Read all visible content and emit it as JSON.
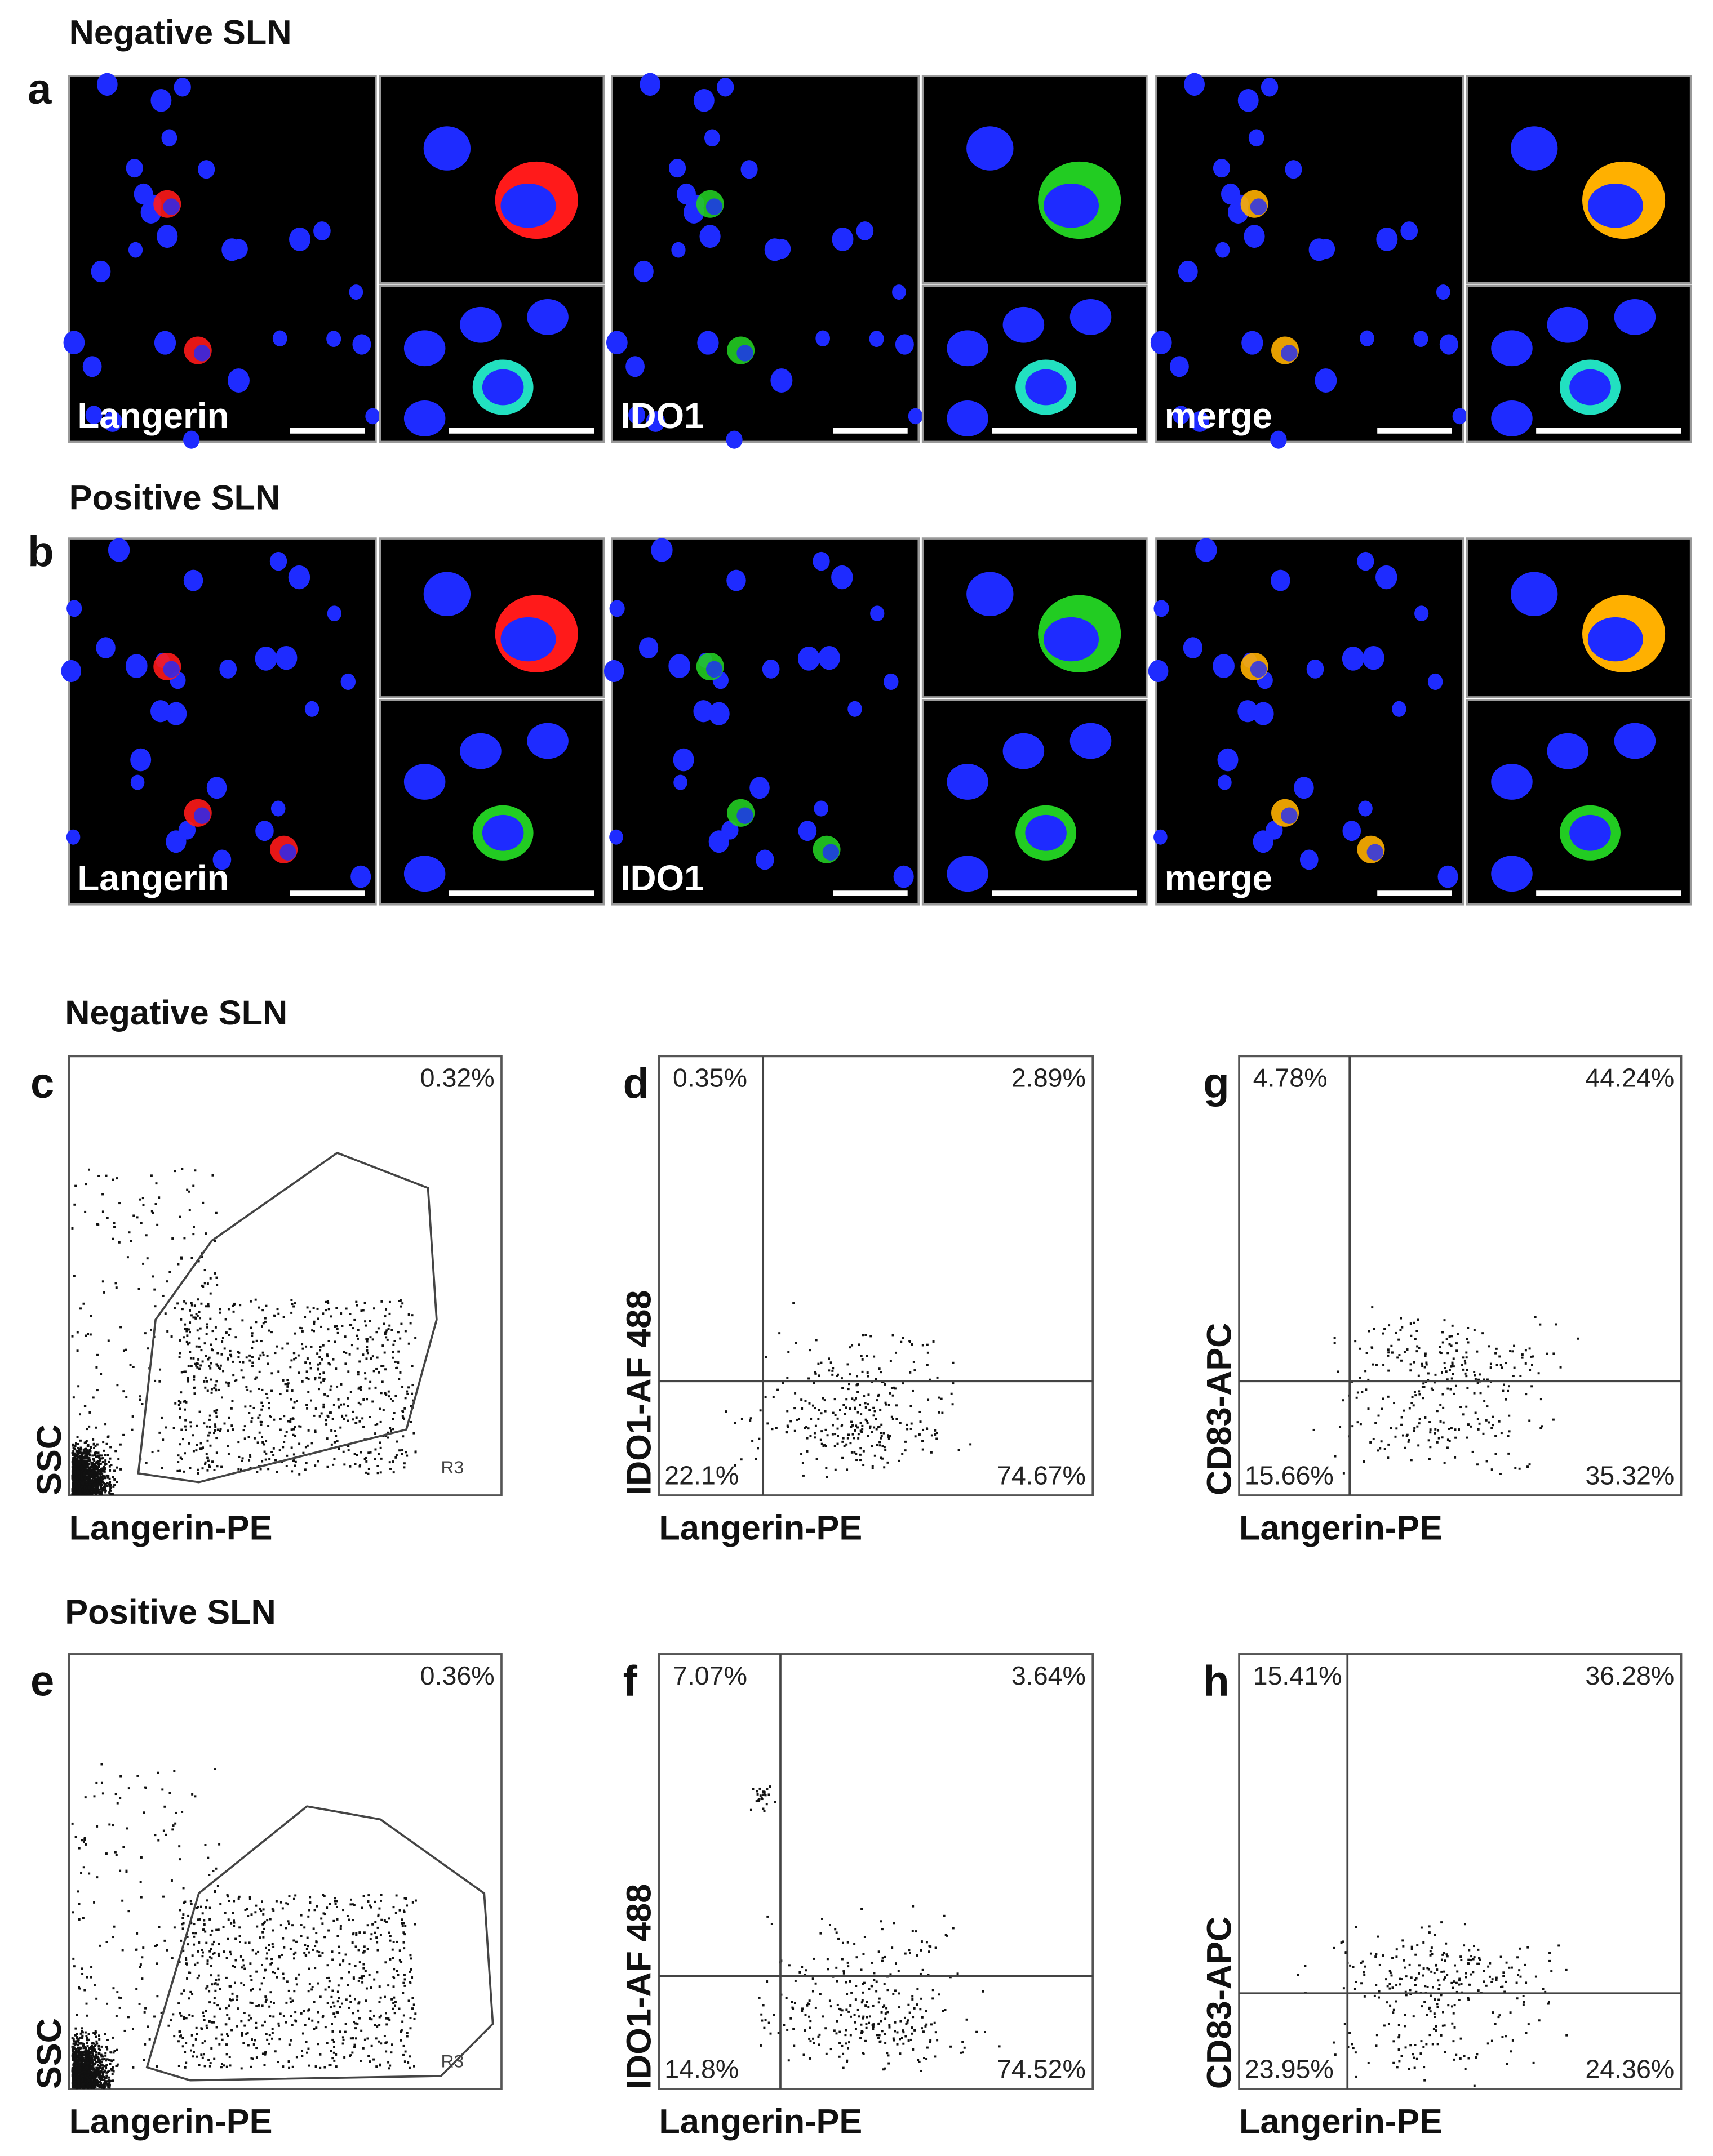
{
  "microscopy": {
    "rows": [
      {
        "title": "Negative SLN",
        "label": "a",
        "channels": [
          "Langerin",
          "IDO1",
          "merge"
        ]
      },
      {
        "title": "Positive SLN",
        "label": "b",
        "channels": [
          "Langerin",
          "IDO1",
          "merge"
        ]
      }
    ]
  },
  "flow": {
    "rows": [
      {
        "title": "Negative SLN",
        "plots": [
          {
            "label": "c",
            "x_label": "Langerin-PE",
            "y_label": "SSC",
            "gate": "R3",
            "percentages": [
              "0.32%"
            ]
          },
          {
            "label": "d",
            "x_label": "Langerin-PE",
            "y_label": "IDO1-AF 488",
            "percentages": [
              "0.35%",
              "2.89%",
              "22.1%",
              "74.67%"
            ]
          },
          {
            "label": "g",
            "x_label": "Langerin-PE",
            "y_label": "CD83-APC",
            "percentages": [
              "4.78%",
              "44.24%",
              "15.66%",
              "35.32%"
            ]
          }
        ]
      },
      {
        "title": "Positive SLN",
        "plots": [
          {
            "label": "e",
            "x_label": "Langerin-PE",
            "y_label": "SSC",
            "gate": "R3",
            "percentages": [
              "0.36%"
            ]
          },
          {
            "label": "f",
            "x_label": "Langerin-PE",
            "y_label": "IDO1-AF 488",
            "percentages": [
              "7.07%",
              "3.64%",
              "14.8%",
              "74.52%"
            ]
          },
          {
            "label": "h",
            "x_label": "Langerin-PE",
            "y_label": "CD83-APC",
            "percentages": [
              "15.41%",
              "36.28%",
              "23.95%",
              "24.36%"
            ]
          }
        ]
      }
    ]
  }
}
